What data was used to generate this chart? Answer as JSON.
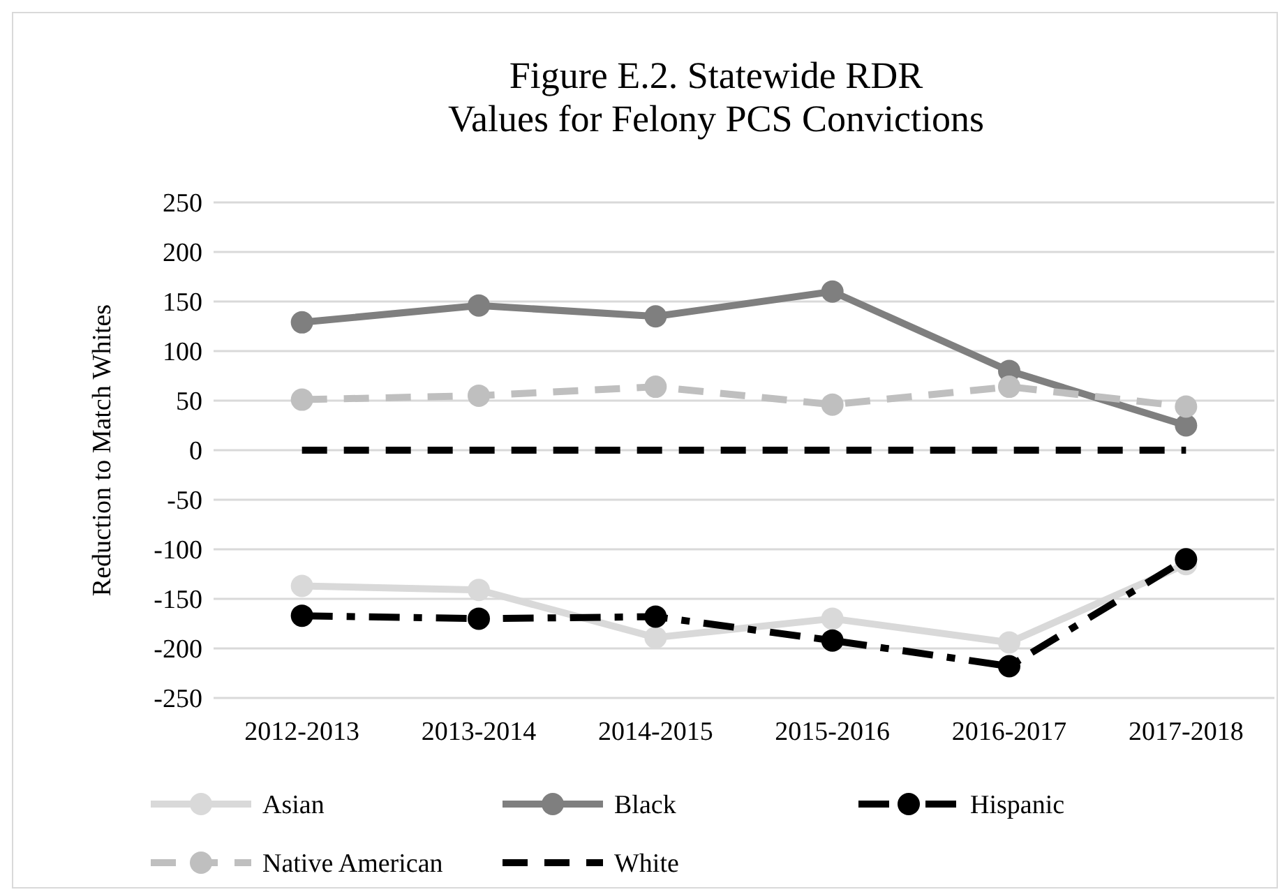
{
  "chart_data": {
    "type": "line",
    "title": "Figure E.2. Statewide RDR\nValues for Felony PCS Convictions",
    "ylabel": "Reduction to Match Whites",
    "categories": [
      "2012-2013",
      "2013-2014",
      "2014-2015",
      "2015-2016",
      "2016-2017",
      "2017-2018"
    ],
    "ylim": [
      -250,
      250
    ],
    "yticks": [
      -250,
      -200,
      -150,
      -100,
      -50,
      0,
      50,
      100,
      150,
      200,
      250
    ],
    "grid": "y",
    "legend": "bottom",
    "series": [
      {
        "name": "Asian",
        "color": "#d9d9d9",
        "marker": "circle",
        "line_style": "solid",
        "values": [
          -137,
          -141,
          -189,
          -170,
          -194,
          -115
        ]
      },
      {
        "name": "Black",
        "color": "#7f7f7f",
        "marker": "circle",
        "line_style": "solid",
        "values": [
          129,
          146,
          135,
          160,
          80,
          25
        ]
      },
      {
        "name": "Hispanic",
        "color": "#000000",
        "marker": "circle",
        "line_style": "dashdot",
        "values": [
          -167,
          -170,
          -168,
          -192,
          -218,
          -110
        ]
      },
      {
        "name": "Native American",
        "color": "#bfbfbf",
        "marker": "circle",
        "line_style": "dashed",
        "values": [
          51,
          55,
          64,
          46,
          64,
          44
        ]
      },
      {
        "name": "White",
        "color": "#000000",
        "marker": "none",
        "line_style": "dashed",
        "values": [
          0,
          0,
          0,
          0,
          0,
          0
        ]
      }
    ]
  }
}
